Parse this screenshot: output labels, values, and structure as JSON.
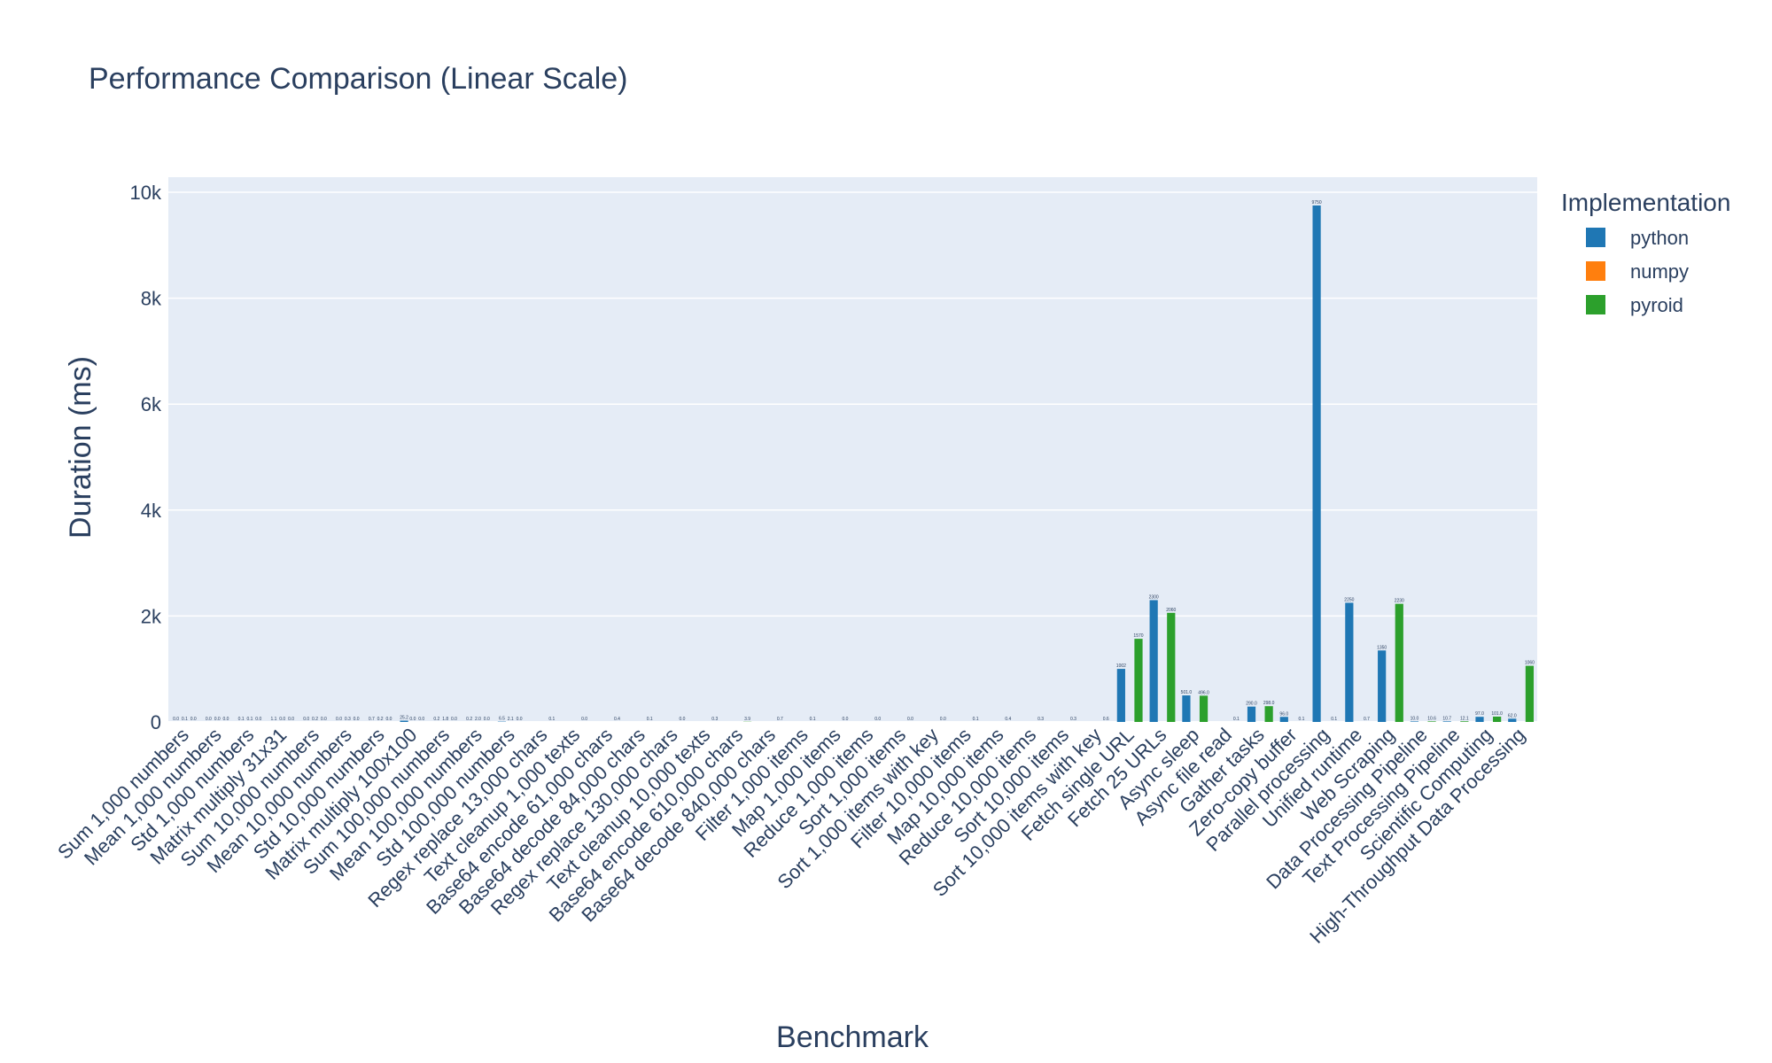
{
  "chart_data": {
    "type": "bar",
    "title": "Performance Comparison (Linear Scale)",
    "xlabel": "Benchmark",
    "ylabel": "Duration (ms)",
    "ylim": [
      0,
      10000
    ],
    "yticks": [
      0,
      2000,
      4000,
      6000,
      8000,
      10000
    ],
    "ytick_labels": [
      "0",
      "2k",
      "4k",
      "6k",
      "8k",
      "10k"
    ],
    "grid": true,
    "legend": {
      "title": "Implementation",
      "placement": "right"
    },
    "colors": {
      "python": "#1f77b4",
      "numpy": "#ff7f0e",
      "pyroid": "#2ca02c"
    },
    "categories": [
      "Sum 1,000 numbers",
      "Mean 1,000 numbers",
      "Std 1,000 numbers",
      "Matrix multiply 31x31",
      "Sum 10,000 numbers",
      "Mean 10,000 numbers",
      "Std 10,000 numbers",
      "Matrix multiply 100x100",
      "Sum 100,000 numbers",
      "Mean 100,000 numbers",
      "Std 100,000 numbers",
      "Regex replace 13,000 chars",
      "Text cleanup 1,000 texts",
      "Base64 encode 61,000 chars",
      "Base64 decode 84,000 chars",
      "Regex replace 130,000 chars",
      "Text cleanup 10,000 texts",
      "Base64 encode 610,000 chars",
      "Base64 decode 840,000 chars",
      "Filter 1,000 items",
      "Map 1,000 items",
      "Reduce 1,000 items",
      "Sort 1,000 items",
      "Sort 1,000 items with key",
      "Filter 10,000 items",
      "Map 10,000 items",
      "Reduce 10,000 items",
      "Sort 10,000 items",
      "Sort 10,000 items with key",
      "Fetch single URL",
      "Fetch 25 URLs",
      "Async sleep",
      "Async file read",
      "Gather tasks",
      "Zero-copy buffer",
      "Parallel processing",
      "Unified runtime",
      "Web Scraping",
      "Data Processing Pipeline",
      "Text Processing Pipeline",
      "Scientific Computing",
      "High-Throughput Data Processing"
    ],
    "series": [
      {
        "name": "python",
        "values": [
          0.0,
          0.0,
          0.1,
          1.1,
          0.0,
          0.0,
          0.7,
          25.2,
          0.2,
          0.2,
          6.5,
          null,
          null,
          null,
          null,
          null,
          null,
          null,
          null,
          null,
          null,
          null,
          null,
          null,
          null,
          null,
          null,
          null,
          null,
          1002.0,
          2300.0,
          501.0,
          null,
          290.0,
          96.0,
          9750.0,
          2250.0,
          1350.0,
          10.0,
          10.7,
          97.0,
          62.0
        ],
        "labels": [
          "0.0",
          "0.0",
          "0.1",
          "1.1",
          "0.0",
          "0.0",
          "0.7",
          "25.2",
          "0.2",
          "0.2",
          "6.5",
          "",
          "",
          "",
          "",
          "",
          "",
          "",
          "",
          "",
          "",
          "",
          "",
          "",
          "",
          "",
          "",
          "",
          "",
          "1002",
          "2300",
          "501.0",
          "",
          "290.0",
          "96.0",
          "9750",
          "2250",
          "1350",
          "10.0",
          "10.7",
          "97.0",
          "62.0"
        ]
      },
      {
        "name": "numpy",
        "values": [
          0.1,
          0.0,
          0.1,
          0.0,
          0.2,
          0.3,
          0.2,
          0.0,
          1.8,
          2.0,
          2.1,
          null,
          null,
          null,
          null,
          null,
          null,
          null,
          null,
          null,
          null,
          null,
          null,
          null,
          null,
          null,
          null,
          null,
          null,
          null,
          null,
          null,
          null,
          null,
          null,
          null,
          null,
          null,
          null,
          null,
          null,
          null
        ],
        "labels": [
          "0.1",
          "0.0",
          "0.1",
          "0.0",
          "0.2",
          "0.3",
          "0.2",
          "0.0",
          "1.8",
          "2.0",
          "2.1",
          "",
          "",
          "",
          "",
          "",
          "",
          "",
          "",
          "",
          "",
          "",
          "",
          "",
          "",
          "",
          "",
          "",
          "",
          "",
          "",
          "",
          "",
          "",
          "",
          "",
          "",
          "",
          "",
          "",
          "",
          ""
        ]
      },
      {
        "name": "pyroid",
        "values": [
          0.0,
          0.0,
          0.0,
          0.0,
          0.0,
          0.0,
          0.0,
          0.0,
          0.0,
          0.0,
          0.0,
          0.1,
          0.0,
          0.4,
          0.1,
          0.0,
          0.3,
          3.9,
          0.7,
          0.1,
          0.0,
          0.0,
          0.0,
          0.0,
          0.1,
          0.4,
          0.3,
          0.3,
          0.6,
          1570.0,
          2060.0,
          496.0,
          0.1,
          298.0,
          0.1,
          0.1,
          0.7,
          2230.0,
          10.6,
          12.1,
          101.0,
          1060.0
        ],
        "labels": [
          "0.0",
          "0.0",
          "0.0",
          "0.0",
          "0.0",
          "0.0",
          "0.0",
          "0.0",
          "0.0",
          "0.0",
          "0.0",
          "0.1",
          "0.0",
          "0.4",
          "0.1",
          "0.0",
          "0.3",
          "3.9",
          "0.7",
          "0.1",
          "0.0",
          "0.0",
          "0.0",
          "0.0",
          "0.1",
          "0.4",
          "0.3",
          "0.3",
          "0.6",
          "1570",
          "2060",
          "496.0",
          "0.1",
          "298.0",
          "0.1",
          "0.1",
          "0.7",
          "2230",
          "10.6",
          "12.1",
          "101.0",
          "1060"
        ]
      }
    ]
  }
}
